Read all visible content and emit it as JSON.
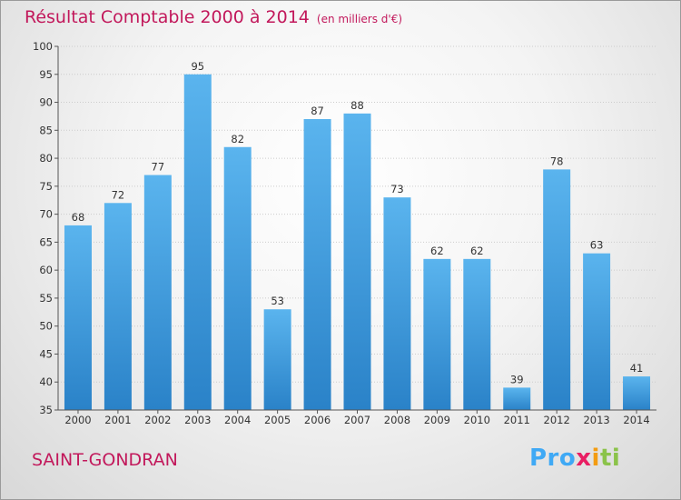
{
  "header": {
    "title": "Résultat Comptable 2000 à 2014",
    "subtitle": "(en milliers d'€)"
  },
  "footer": {
    "commune": "SAINT-GONDRAN",
    "logo": {
      "parts": [
        "Pro",
        "x",
        "i",
        "ti"
      ],
      "colors": [
        "#3fa9f5",
        "#e91e63",
        "#f39c12",
        "#8bc34a"
      ]
    }
  },
  "colors": {
    "title": "#c2185b",
    "bar_top": "#5ab4ee",
    "bar_bottom": "#2a82c8",
    "grid": "#cccccc"
  },
  "chart_data": {
    "type": "bar",
    "title": "Résultat Comptable 2000 à 2014",
    "xlabel": "",
    "ylabel": "",
    "categories": [
      "2000",
      "2001",
      "2002",
      "2003",
      "2004",
      "2005",
      "2006",
      "2007",
      "2008",
      "2009",
      "2010",
      "2011",
      "2012",
      "2013",
      "2014"
    ],
    "values": [
      68,
      72,
      77,
      95,
      82,
      53,
      87,
      88,
      73,
      62,
      62,
      39,
      78,
      63,
      41
    ],
    "ylim": [
      35,
      100
    ],
    "yticks": [
      35,
      40,
      45,
      50,
      55,
      60,
      65,
      70,
      75,
      80,
      85,
      90,
      95,
      100
    ],
    "grid": true
  }
}
